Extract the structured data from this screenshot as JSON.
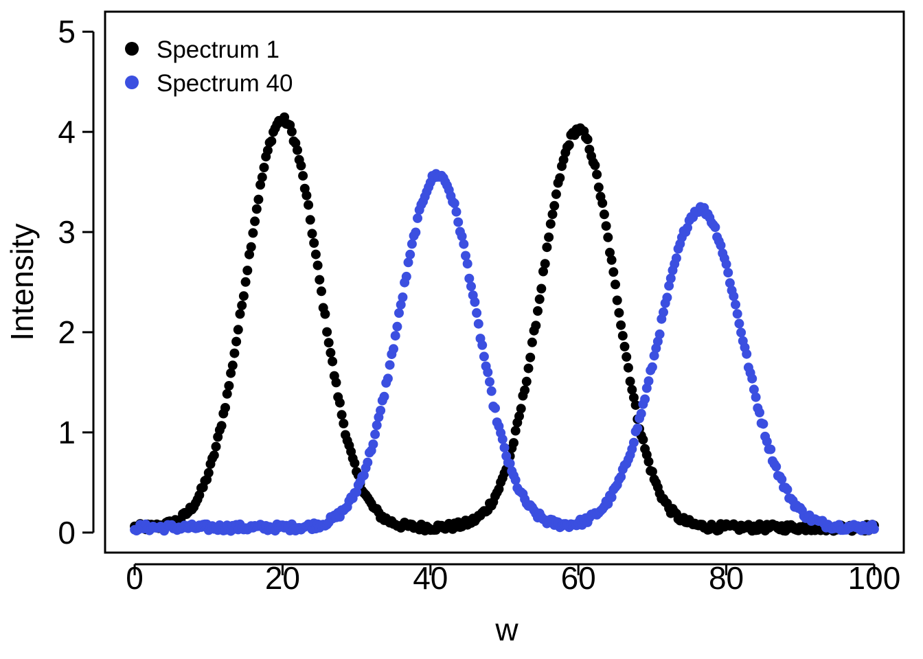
{
  "chart_data": {
    "type": "scatter",
    "xlabel": "w",
    "ylabel": "Intensity",
    "xlim": [
      -4,
      104
    ],
    "ylim": [
      -0.2,
      5.2
    ],
    "x_ticks": [
      0,
      20,
      40,
      60,
      80,
      100
    ],
    "y_ticks": [
      0,
      1,
      2,
      3,
      4,
      5
    ],
    "grid": false,
    "legend_position": "top-left",
    "x": {
      "start": 0,
      "end": 100,
      "count": 401
    },
    "series": [
      {
        "name": "Spectrum 1",
        "color": "#000000",
        "baseline": 0.05,
        "peaks": [
          {
            "center": 20,
            "height": 4.07,
            "sigma": 5.0
          },
          {
            "center": 60,
            "height": 3.97,
            "sigma": 5.0
          }
        ]
      },
      {
        "name": "Spectrum 40",
        "color": "#3b4fe0",
        "baseline": 0.05,
        "peaks": [
          {
            "center": 41,
            "height": 3.52,
            "sigma": 5.2
          },
          {
            "center": 76.5,
            "height": 3.18,
            "sigma": 5.6
          }
        ]
      }
    ]
  }
}
